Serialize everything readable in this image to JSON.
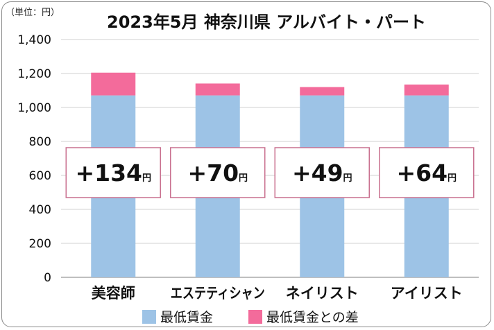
{
  "chart_data": {
    "type": "bar",
    "stacked": true,
    "title": "2023年5月 神奈川県 アルバイト・パート",
    "unit_label": "（単位：円）",
    "categories": [
      "美容師",
      "エステティシャン",
      "ネイリスト",
      "アイリスト"
    ],
    "series": [
      {
        "name": "最低賃金",
        "color": "#9dc3e6",
        "values": [
          1071,
          1071,
          1071,
          1071
        ]
      },
      {
        "name": "最低賃金との差",
        "color": "#f36b9b",
        "values": [
          134,
          70,
          49,
          64
        ]
      }
    ],
    "data_labels": [
      {
        "value": "+134",
        "unit": "円"
      },
      {
        "value": "+70",
        "unit": "円"
      },
      {
        "value": "+49",
        "unit": "円"
      },
      {
        "value": "+64",
        "unit": "円"
      }
    ],
    "ylim": [
      0,
      1400
    ],
    "yticks": [
      "0",
      "200",
      "400",
      "600",
      "800",
      "1,000",
      "1,200",
      "1,400"
    ],
    "ytick_values": [
      0,
      200,
      400,
      600,
      800,
      1000,
      1200,
      1400
    ],
    "grid": true,
    "legend_position": "bottom"
  }
}
